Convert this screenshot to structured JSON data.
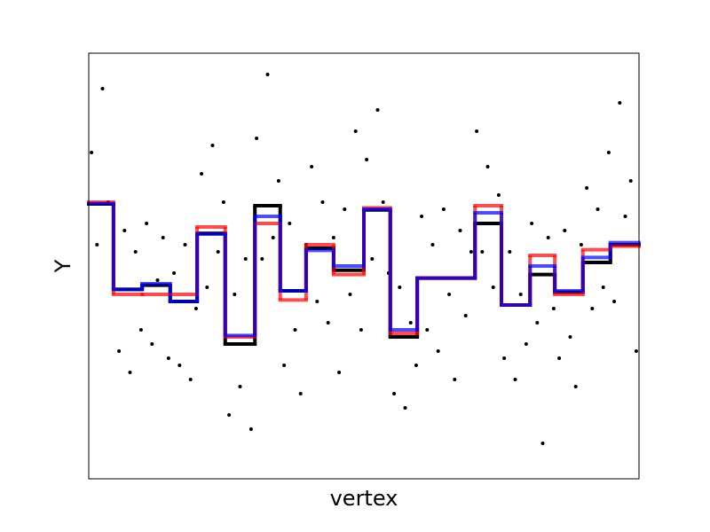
{
  "chart_data": {
    "type": "step",
    "xlabel": "vertex",
    "ylabel": "Y",
    "xlim": [
      0,
      100
    ],
    "ylim": [
      -3,
      3
    ],
    "edges": [
      0,
      4.5,
      9.7,
      14.8,
      19.7,
      24.8,
      30.2,
      34.8,
      39.5,
      44.5,
      50,
      54.8,
      59.7,
      70.2,
      75,
      80.2,
      84.7,
      89.8,
      94.8,
      100
    ],
    "series": [
      {
        "color": "#000000",
        "opacity": 1,
        "values": [
          0.875,
          -0.33,
          -0.27,
          -0.5,
          0.46,
          -1.1,
          0.85,
          -0.35,
          0.25,
          -0.06,
          0.79,
          -1.0,
          -0.17,
          0.6,
          -0.55,
          -0.12,
          -0.37,
          0.05,
          0.3
        ]
      },
      {
        "color": "#ff0000",
        "opacity": 0.7,
        "values": [
          0.9,
          -0.4,
          -0.4,
          -0.4,
          0.55,
          -1.0,
          0.6,
          -0.48,
          0.3,
          -0.12,
          0.82,
          -0.95,
          -0.17,
          0.85,
          -0.55,
          0.15,
          -0.4,
          0.23,
          0.28
        ]
      },
      {
        "color": "#0000ff",
        "opacity": 0.7,
        "values": [
          0.88,
          -0.33,
          -0.25,
          -0.5,
          0.45,
          -0.98,
          0.7,
          -0.35,
          0.22,
          0.0,
          0.8,
          -0.9,
          -0.17,
          0.75,
          -0.55,
          0.0,
          -0.35,
          0.12,
          0.33
        ]
      }
    ],
    "scatter": {
      "color": "#000000",
      "x": [
        0.5,
        1.5,
        2.5,
        3.5,
        4.5,
        5.5,
        6.5,
        7.5,
        8.5,
        9.5,
        10.5,
        11.5,
        12.5,
        13.5,
        14.5,
        15.5,
        16.5,
        17.5,
        18.5,
        19.5,
        20.5,
        21.5,
        22.5,
        23.5,
        24.5,
        25.5,
        26.5,
        27.5,
        28.5,
        29.5,
        30.5,
        31.5,
        32.5,
        33.5,
        34.5,
        35.5,
        36.5,
        37.5,
        38.5,
        39.5,
        40.5,
        41.5,
        42.5,
        43.5,
        44.5,
        45.5,
        46.5,
        47.5,
        48.5,
        49.5,
        50.5,
        51.5,
        52.5,
        53.5,
        54.5,
        55.5,
        56.5,
        57.5,
        58.5,
        59.5,
        60.5,
        61.5,
        62.5,
        63.5,
        64.5,
        65.5,
        66.5,
        67.5,
        68.5,
        69.5,
        70.5,
        71.5,
        72.5,
        73.5,
        74.5,
        75.5,
        76.5,
        77.5,
        78.5,
        79.5,
        80.5,
        81.5,
        82.5,
        83.5,
        84.5,
        85.5,
        86.5,
        87.5,
        88.5,
        89.5,
        90.5,
        91.5,
        92.5,
        93.5,
        94.5,
        95.5,
        96.5,
        97.5,
        98.5,
        99.5
      ],
      "y": [
        1.6,
        0.3,
        2.5,
        0.9,
        -0.2,
        -1.2,
        0.5,
        -1.5,
        0.2,
        -0.9,
        0.6,
        -1.1,
        -0.2,
        0.4,
        -1.3,
        -0.1,
        -1.4,
        0.3,
        -1.6,
        -0.6,
        1.3,
        -0.3,
        1.7,
        0.2,
        0.9,
        -2.1,
        -0.4,
        -1.7,
        0.1,
        -2.3,
        1.8,
        0.1,
        2.7,
        0.4,
        1.2,
        -1.4,
        0.6,
        -0.9,
        -1.8,
        0.3,
        1.4,
        -0.5,
        0.9,
        -0.8,
        0.4,
        -1.5,
        0.8,
        -0.4,
        1.9,
        -0.9,
        1.5,
        0.1,
        2.2,
        0.9,
        -0.1,
        -1.8,
        -0.3,
        -2.0,
        -0.8,
        -1.4,
        0.7,
        -0.9,
        0.3,
        -1.2,
        0.8,
        -0.4,
        -1.6,
        0.5,
        -0.7,
        0.2,
        1.9,
        0.2,
        1.4,
        -0.3,
        1.0,
        -1.3,
        0.2,
        -1.6,
        -0.4,
        -1.1,
        0.6,
        -0.8,
        -2.5,
        0.4,
        -0.6,
        -1.3,
        0.5,
        -1.0,
        -1.7,
        0.3,
        1.1,
        -0.6,
        0.8,
        -0.3,
        1.6,
        -0.5,
        2.3,
        0.7,
        1.2,
        -1.2
      ]
    }
  }
}
